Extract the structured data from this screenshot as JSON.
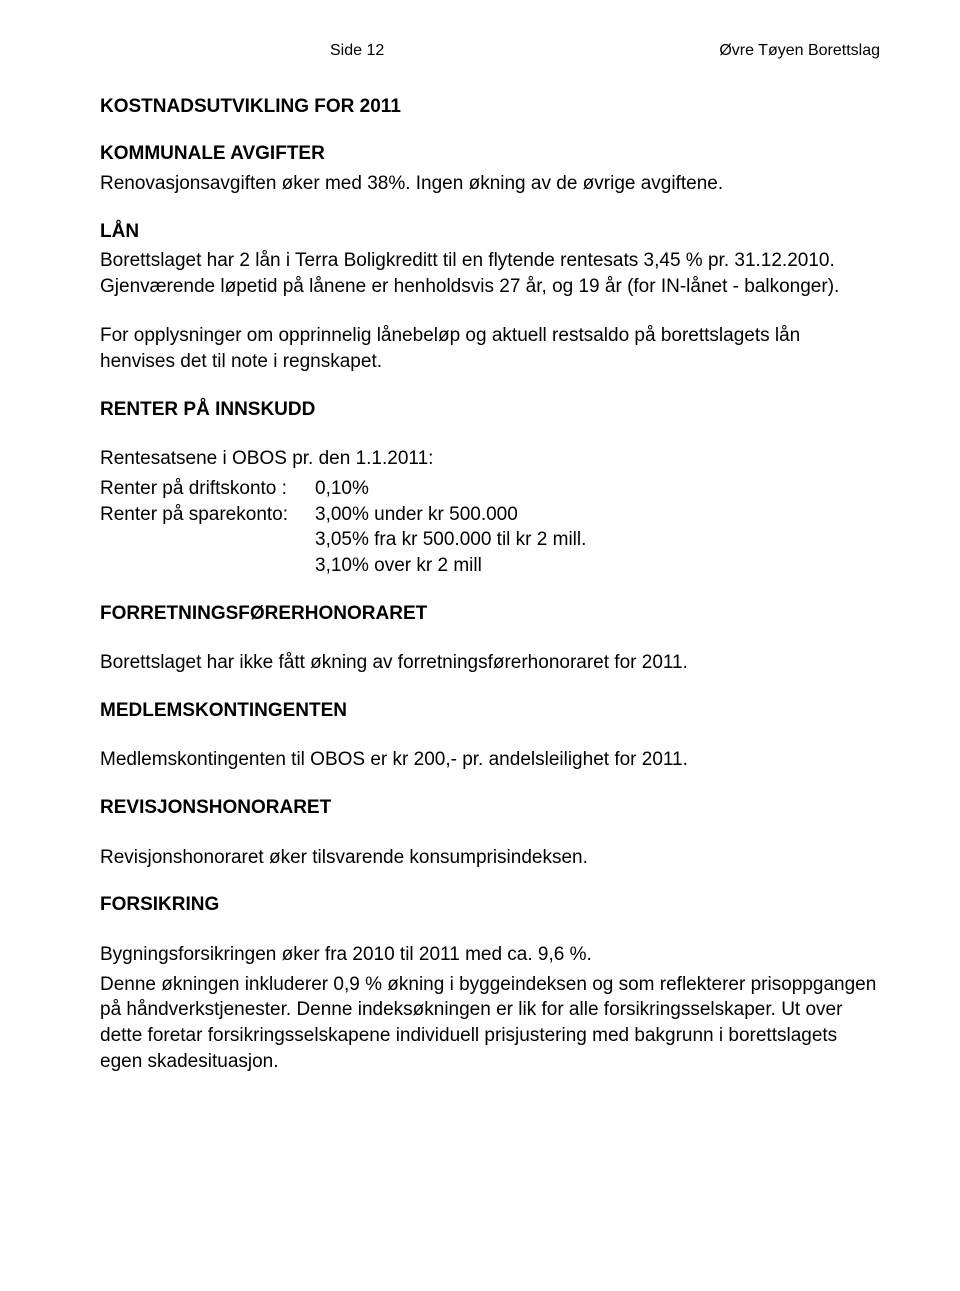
{
  "header": {
    "page_label": "Side 12",
    "doc_title": "Øvre Tøyen Borettslag"
  },
  "sections": {
    "kostnadsutvikling": {
      "title": "KOSTNADSUTVIKLING FOR 2011"
    },
    "kommunale_avgifter": {
      "title": "KOMMUNALE AVGIFTER",
      "body": "Renovasjonsavgiften øker med 38%. Ingen økning av de øvrige avgiftene."
    },
    "lan": {
      "title": "LÅN",
      "p1": "Borettslaget har 2 lån i Terra Boligkreditt til en flytende rentesats 3,45 % pr. 31.12.2010. Gjenværende løpetid på lånene er henholdsvis 27 år, og 19 år (for IN-lånet - balkonger).",
      "p2": "For opplysninger om opprinnelig lånebeløp og aktuell restsaldo på borettslagets lån henvises det til note i regnskapet."
    },
    "renter": {
      "title": "RENTER PÅ INNSKUDD",
      "intro": "Rentesatsene i OBOS pr. den 1.1.2011:",
      "rows": [
        {
          "label": "Renter på driftskonto :",
          "value": "0,10%"
        },
        {
          "label": "Renter på sparekonto:",
          "value": "3,00% under kr 500.000"
        }
      ],
      "extra1": "3,05% fra kr 500.000 til kr 2 mill.",
      "extra2": "3,10% over kr 2 mill"
    },
    "forretningsforer": {
      "title": "FORRETNINGSFØRERHONORARET",
      "body": "Borettslaget har ikke fått økning av forretningsførerhonoraret for 2011."
    },
    "medlemskontingenten": {
      "title": "MEDLEMSKONTINGENTEN",
      "body": "Medlemskontingenten til OBOS er kr 200,- pr. andelsleilighet for 2011."
    },
    "revisjon": {
      "title": "REVISJONSHONORARET",
      "body": "Revisjonshonoraret øker tilsvarende konsumprisindeksen."
    },
    "forsikring": {
      "title": "FORSIKRING",
      "p1": "Bygningsforsikringen øker fra 2010 til 2011 med ca. 9,6 %.",
      "p2": "Denne økningen inkluderer 0,9 % økning i byggeindeksen og som reflekterer prisoppgangen på håndverkstjenester. Denne indeksøkningen er lik for alle forsikringsselskaper. Ut over dette foretar forsikringsselskapene individuell prisjustering med bakgrunn i borettslagets egen skadesituasjon."
    }
  }
}
